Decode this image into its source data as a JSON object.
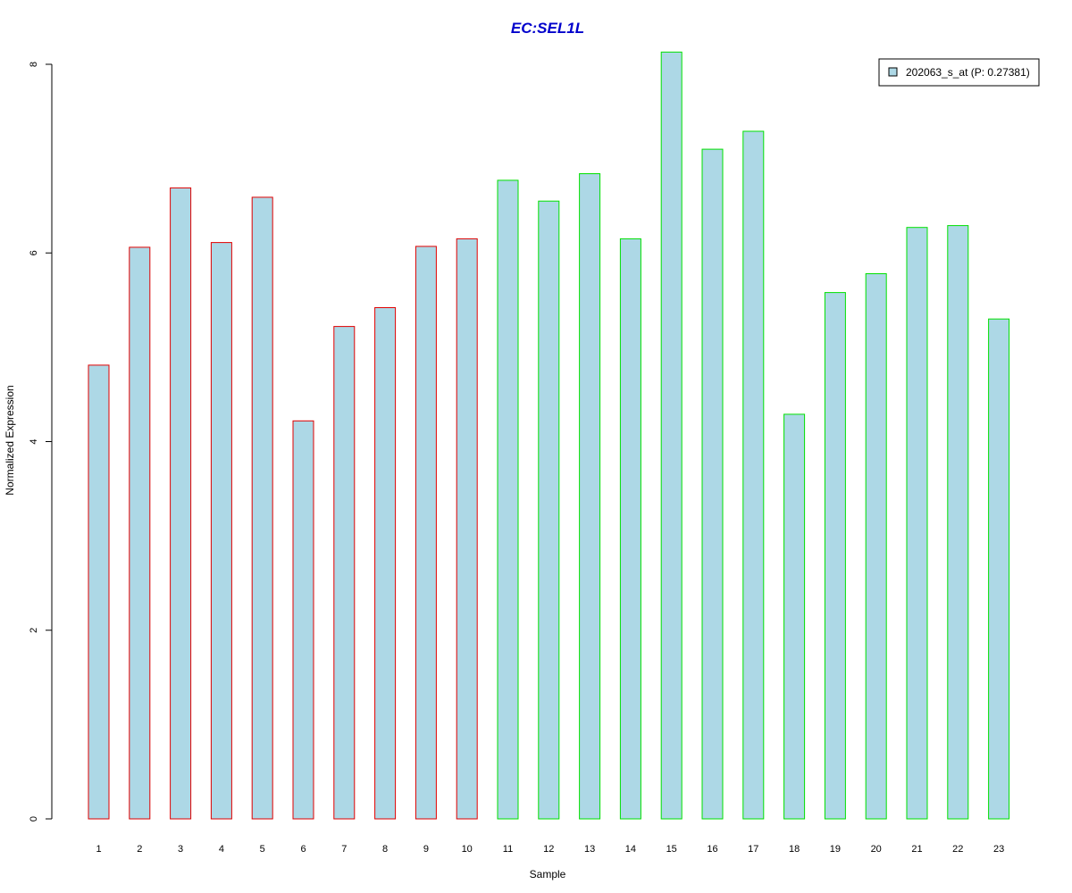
{
  "chart_data": {
    "type": "bar",
    "title": "EC:SEL1L",
    "xlabel": "Sample",
    "ylabel": "Normalized Expression",
    "ylim": [
      0,
      8
    ],
    "yticks": [
      "0",
      "2",
      "4",
      "6",
      "8"
    ],
    "categories": [
      "1",
      "2",
      "3",
      "4",
      "5",
      "6",
      "7",
      "8",
      "9",
      "10",
      "11",
      "12",
      "13",
      "14",
      "15",
      "16",
      "17",
      "18",
      "19",
      "20",
      "21",
      "22",
      "23"
    ],
    "values": [
      4.81,
      6.06,
      6.69,
      6.11,
      6.59,
      4.22,
      5.22,
      5.42,
      6.07,
      6.15,
      6.77,
      6.55,
      6.84,
      6.15,
      8.13,
      7.1,
      7.29,
      4.29,
      5.58,
      5.78,
      6.27,
      6.29,
      5.3
    ],
    "groups": [
      "red",
      "red",
      "red",
      "red",
      "red",
      "red",
      "red",
      "red",
      "red",
      "red",
      "green",
      "green",
      "green",
      "green",
      "green",
      "green",
      "green",
      "green",
      "green",
      "green",
      "green",
      "green",
      "green"
    ],
    "legend": {
      "entries": [
        {
          "label": "202063_s_at (P: 0.27381)",
          "fill": "#add8e6"
        }
      ],
      "placement": "top-right"
    },
    "colors": {
      "bar_fill": "#add8e6",
      "red": "#e00000",
      "green": "#00e000",
      "title": "#0000cc",
      "axis": "#000000"
    },
    "grid": false
  }
}
